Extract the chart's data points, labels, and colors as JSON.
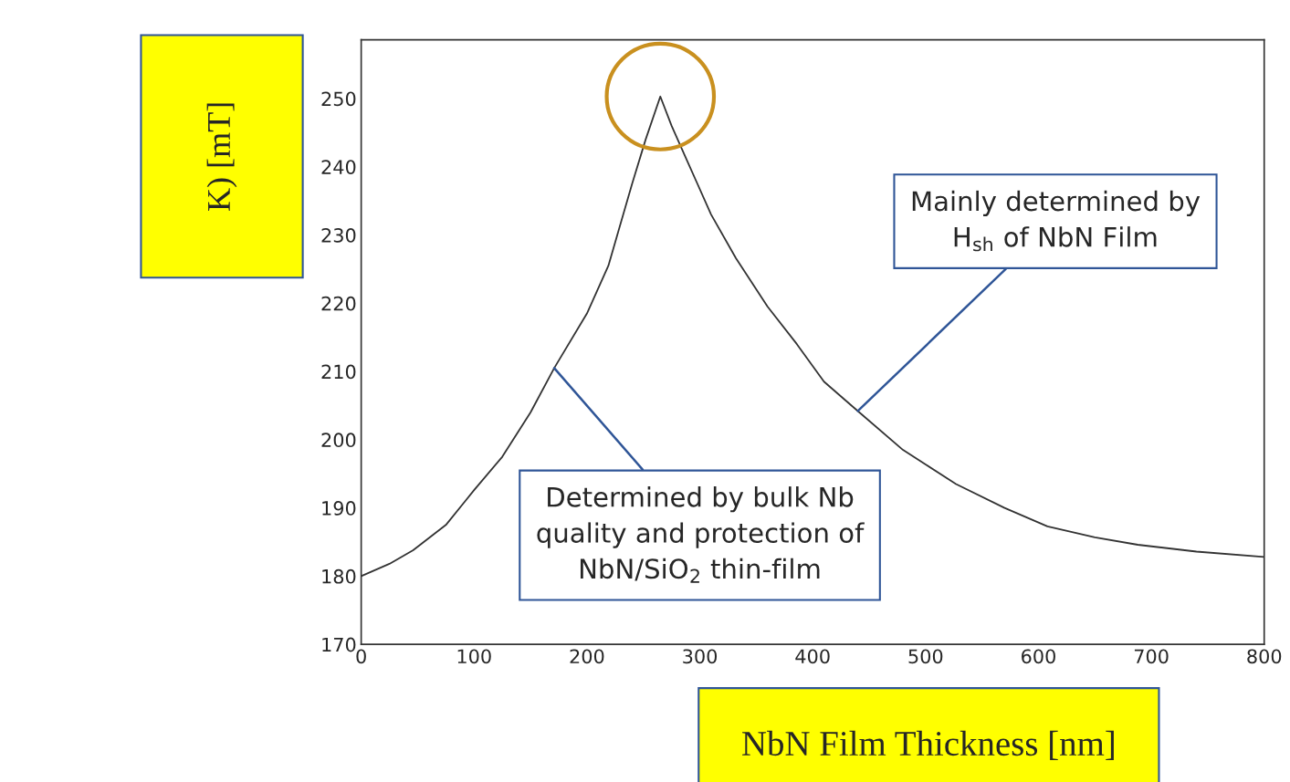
{
  "chart_data": {
    "type": "line",
    "xlabel": "NbN Film Thickness [nm]",
    "ylabel": "K) [mT]",
    "series": [
      {
        "color": "#333333",
        "x": [
          0,
          25,
          46,
          75,
          100,
          125,
          150,
          171,
          200,
          219,
          240,
          252,
          265,
          275,
          289,
          310,
          332,
          360,
          386,
          410,
          440,
          480,
          527,
          570,
          608,
          650,
          688,
          740,
          800
        ],
        "values": [
          180,
          181.8,
          183.8,
          187.5,
          192.6,
          197.5,
          204,
          210.5,
          218.5,
          225.5,
          237.5,
          244,
          250.3,
          246,
          240.8,
          233,
          226.6,
          219.5,
          214,
          208.5,
          204.2,
          198.5,
          193.5,
          190,
          187.3,
          185.7,
          184.6,
          183.6,
          182.8
        ]
      }
    ],
    "xlim": [
      0,
      800
    ],
    "xticks": [
      0,
      100,
      200,
      300,
      400,
      500,
      600,
      700,
      800
    ],
    "ylim": [
      170,
      258.6
    ],
    "yticks": [
      170,
      180,
      190,
      200,
      210,
      220,
      230,
      240,
      250
    ],
    "grid": false,
    "legend": false,
    "marker": "none",
    "line_style": "solid",
    "annotations": [
      {
        "text": "Determined by bulk Nb\nquality and protection of\nNbN/SiO$_{2}$ thin-film",
        "x": 171,
        "y": 210.5
      },
      {
        "text": "Mainly determined by\nH$_{sh}$ of NbN Film",
        "x": 440,
        "y": 204.2
      }
    ]
  }
}
